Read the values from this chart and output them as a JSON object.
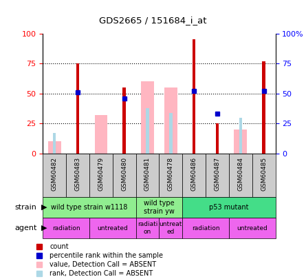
{
  "title": "GDS2665 / 151684_i_at",
  "samples": [
    "GSM60482",
    "GSM60483",
    "GSM60479",
    "GSM60480",
    "GSM60481",
    "GSM60478",
    "GSM60486",
    "GSM60487",
    "GSM60484",
    "GSM60485"
  ],
  "count_values": [
    0,
    75,
    0,
    55,
    0,
    0,
    95,
    25,
    0,
    77
  ],
  "percentile_rank": [
    null,
    51,
    null,
    46,
    null,
    null,
    52,
    33,
    null,
    52
  ],
  "value_absent": [
    10,
    null,
    32,
    null,
    60,
    55,
    null,
    null,
    20,
    null
  ],
  "rank_absent": [
    17,
    null,
    null,
    null,
    38,
    34,
    null,
    null,
    30,
    null
  ],
  "strain_groups": [
    {
      "label": "wild type strain w1118",
      "start": 0,
      "end": 3,
      "color": "#90EE90"
    },
    {
      "label": "wild type\nstrain yw",
      "start": 4,
      "end": 5,
      "color": "#90EE90"
    },
    {
      "label": "p53 mutant",
      "start": 6,
      "end": 9,
      "color": "#44DD88"
    }
  ],
  "agent_groups": [
    {
      "label": "radiation",
      "start": 0,
      "end": 1,
      "color": "#EE66EE"
    },
    {
      "label": "untreated",
      "start": 2,
      "end": 3,
      "color": "#EE66EE"
    },
    {
      "label": "radiati\non",
      "start": 4,
      "end": 4,
      "color": "#EE66EE"
    },
    {
      "label": "untreat\ned",
      "start": 5,
      "end": 5,
      "color": "#EE66EE"
    },
    {
      "label": "radiation",
      "start": 6,
      "end": 7,
      "color": "#EE66EE"
    },
    {
      "label": "untreated",
      "start": 8,
      "end": 9,
      "color": "#EE66EE"
    }
  ],
  "count_color": "#CC0000",
  "percentile_color": "#0000CC",
  "value_absent_color": "#FFB6C1",
  "rank_absent_color": "#ADD8E6",
  "ylim_left": [
    0,
    100
  ],
  "yticks_left": [
    0,
    25,
    50,
    75,
    100
  ],
  "yticks_right_labels": [
    "0",
    "25",
    "50",
    "75",
    "100%"
  ],
  "grid_values": [
    25,
    50,
    75
  ],
  "sample_bg_color": "#CCCCCC",
  "legend_items": [
    {
      "color": "#CC0000",
      "label": "count"
    },
    {
      "color": "#0000CC",
      "label": "percentile rank within the sample"
    },
    {
      "color": "#FFB6C1",
      "label": "value, Detection Call = ABSENT"
    },
    {
      "color": "#ADD8E6",
      "label": "rank, Detection Call = ABSENT"
    }
  ]
}
